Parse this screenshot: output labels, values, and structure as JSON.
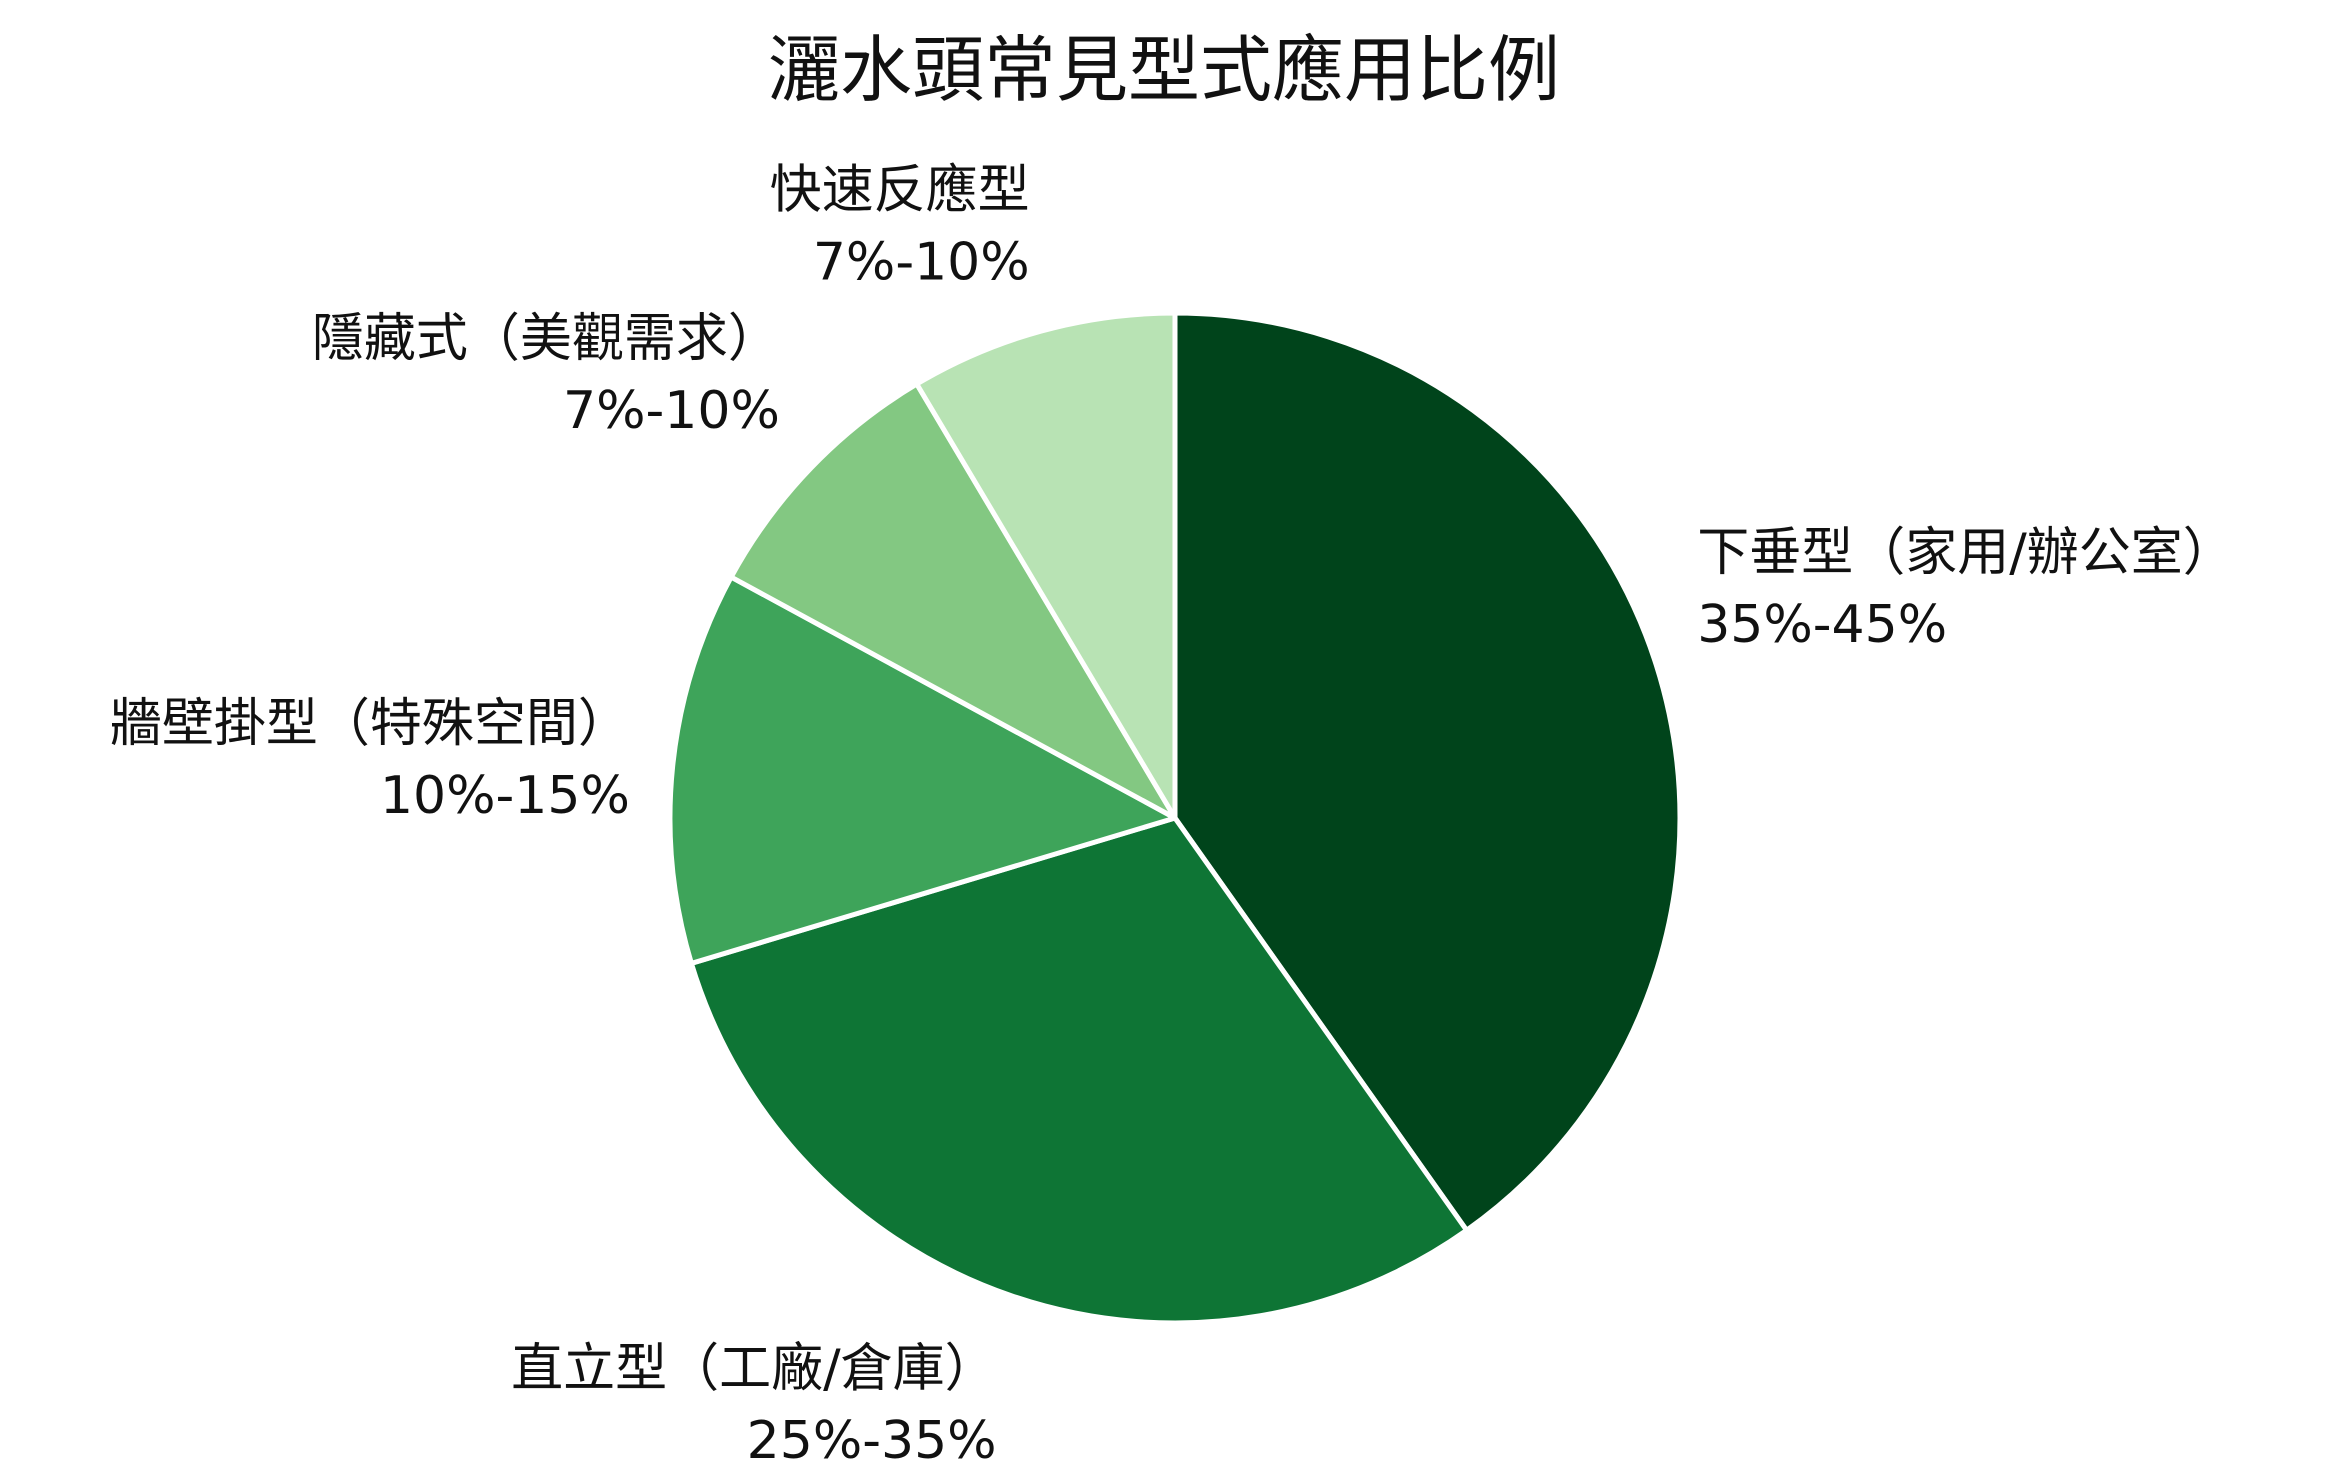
{
  "chart_data": {
    "type": "pie",
    "title": "灑水頭常見型式應用比例",
    "start_angle_deg": 0,
    "direction": "clockwise",
    "categories": [
      "下垂型（家用/辦公室）",
      "直立型（工廠/倉庫）",
      "牆壁掛型（特殊空間）",
      "隱藏式（美觀需求）",
      "快速反應型"
    ],
    "range_labels": [
      "35%-45%",
      "25%-35%",
      "10%-15%",
      "7%-10%",
      "7%-10%"
    ],
    "values": [
      40,
      30,
      12.5,
      8.5,
      8.5
    ],
    "colors": [
      "#00441b",
      "#0e7535",
      "#3ea45a",
      "#83c882",
      "#b8e3b4"
    ],
    "legend": "none"
  }
}
